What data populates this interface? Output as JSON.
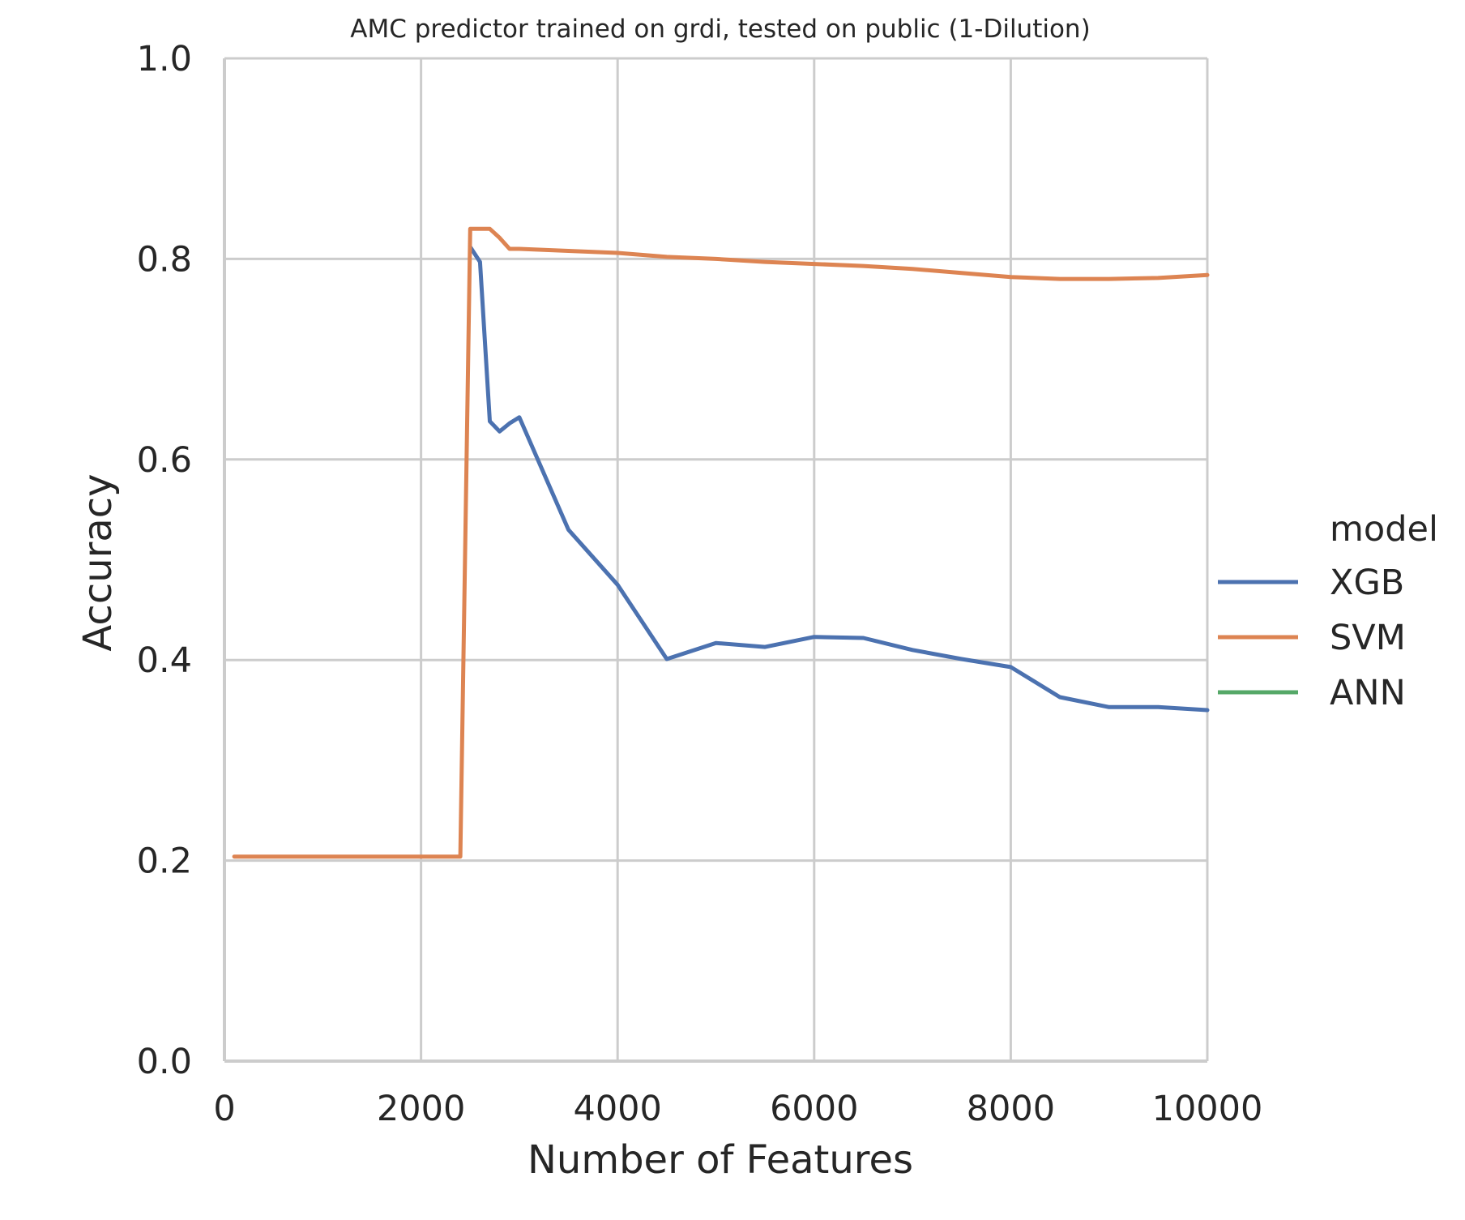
{
  "chart_data": {
    "type": "line",
    "title": "AMC predictor trained on grdi, tested on public (1-Dilution)",
    "xlabel": "Number of Features",
    "ylabel": "Accuracy",
    "xlim": [
      0,
      10000
    ],
    "ylim": [
      0.0,
      1.0
    ],
    "x_ticks": [
      0,
      2000,
      4000,
      6000,
      8000,
      10000
    ],
    "x_tick_labels": [
      "0",
      "2000",
      "4000",
      "6000",
      "8000",
      "10000"
    ],
    "y_ticks": [
      0.0,
      0.2,
      0.4,
      0.6,
      0.8,
      1.0
    ],
    "y_tick_labels": [
      "0.0",
      "0.2",
      "0.4",
      "0.6",
      "0.8",
      "1.0"
    ],
    "grid": true,
    "legend": {
      "title": "model",
      "placement": "right, outside plot",
      "entries": [
        "XGB",
        "SVM",
        "ANN"
      ]
    },
    "series": [
      {
        "name": "XGB",
        "color": "#4c72b0",
        "points": [
          [
            2500,
            0.812
          ],
          [
            2600,
            0.797
          ],
          [
            2700,
            0.638
          ],
          [
            2800,
            0.628
          ],
          [
            2900,
            0.636
          ],
          [
            3000,
            0.642
          ],
          [
            3500,
            0.53
          ],
          [
            4000,
            0.475
          ],
          [
            4500,
            0.401
          ],
          [
            5000,
            0.417
          ],
          [
            5500,
            0.413
          ],
          [
            6000,
            0.423
          ],
          [
            6500,
            0.422
          ],
          [
            7000,
            0.41
          ],
          [
            7500,
            0.401
          ],
          [
            8000,
            0.393
          ],
          [
            8500,
            0.363
          ],
          [
            9000,
            0.353
          ],
          [
            9500,
            0.353
          ],
          [
            10000,
            0.35
          ]
        ]
      },
      {
        "name": "SVM",
        "color": "#dd8452",
        "points": [
          [
            100,
            0.204
          ],
          [
            500,
            0.204
          ],
          [
            1000,
            0.204
          ],
          [
            1500,
            0.204
          ],
          [
            2000,
            0.204
          ],
          [
            2400,
            0.204
          ],
          [
            2500,
            0.83
          ],
          [
            2600,
            0.83
          ],
          [
            2700,
            0.83
          ],
          [
            2800,
            0.821
          ],
          [
            2900,
            0.81
          ],
          [
            3000,
            0.81
          ],
          [
            3500,
            0.808
          ],
          [
            4000,
            0.806
          ],
          [
            4500,
            0.802
          ],
          [
            5000,
            0.8
          ],
          [
            5500,
            0.797
          ],
          [
            6000,
            0.795
          ],
          [
            6500,
            0.793
          ],
          [
            7000,
            0.79
          ],
          [
            7500,
            0.786
          ],
          [
            8000,
            0.782
          ],
          [
            8500,
            0.78
          ],
          [
            9000,
            0.78
          ],
          [
            9500,
            0.781
          ],
          [
            10000,
            0.784
          ]
        ]
      },
      {
        "name": "ANN",
        "color": "#55a868",
        "points": []
      }
    ]
  }
}
